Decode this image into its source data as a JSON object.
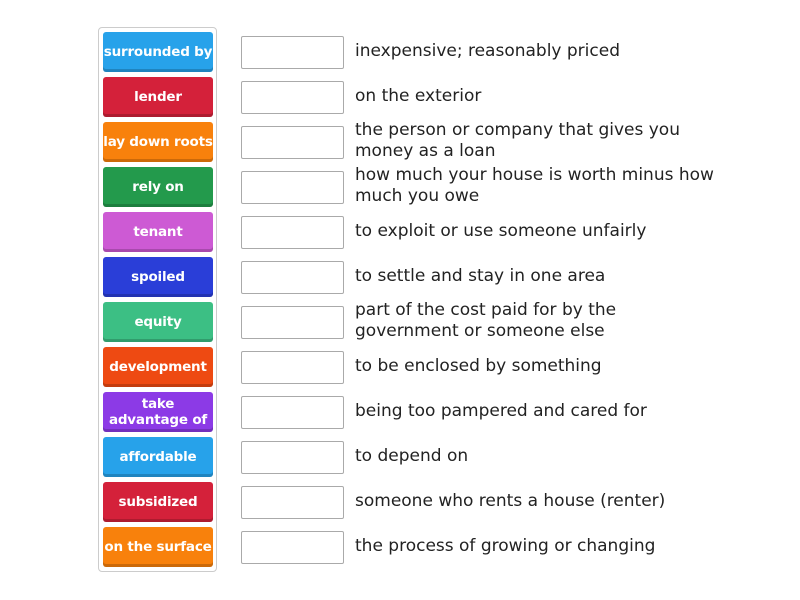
{
  "tiles": [
    {
      "label": "surrounded by",
      "color": "#27a2ea"
    },
    {
      "label": "lender",
      "color": "#d4213a"
    },
    {
      "label": "lay down roots",
      "color": "#f8810c"
    },
    {
      "label": "rely on",
      "color": "#239a4c"
    },
    {
      "label": "tenant",
      "color": "#cd5ad4"
    },
    {
      "label": "spoiled",
      "color": "#2a3ed8"
    },
    {
      "label": "equity",
      "color": "#3cbf84"
    },
    {
      "label": "development",
      "color": "#ee4a12"
    },
    {
      "label": "take advantage of",
      "color": "#8c3ae6"
    },
    {
      "label": "affordable",
      "color": "#27a2ea"
    },
    {
      "label": "subsidized",
      "color": "#d4213a"
    },
    {
      "label": "on the surface",
      "color": "#f8810c"
    }
  ],
  "definitions": [
    "inexpensive; reasonably priced",
    "on the exterior",
    "the person or company that gives you money as a loan",
    "how much your house is worth minus how much you owe",
    "to exploit or use someone unfairly",
    "to settle and stay in one area",
    "part of the cost paid for by the government or someone else",
    "to be enclosed by something",
    "being too pampered and cared for",
    "to depend on",
    "someone who rents a house (renter)",
    "the process of growing or changing"
  ]
}
